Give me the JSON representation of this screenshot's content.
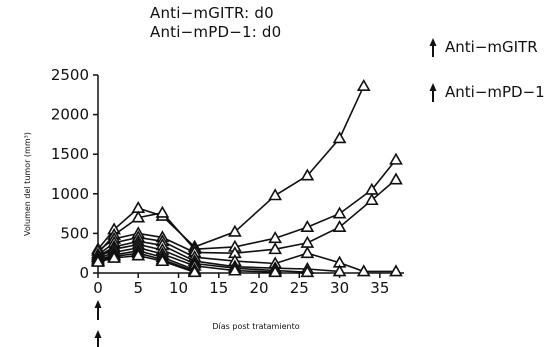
{
  "header": {
    "title_line1": "Anti−mGITR:  d0",
    "title_line2": "Anti−mPD−1:  d0"
  },
  "legend": {
    "items": [
      {
        "label": "Anti−mGITR",
        "icon": "arrow-up-icon"
      },
      {
        "label": "Anti−mPD−1",
        "icon": "arrow-up-icon"
      }
    ]
  },
  "chart_data": {
    "type": "line",
    "title": "",
    "xlabel": "Días post tratamiento",
    "ylabel": "Volumen del tumor (mm³)",
    "xlim": [
      0,
      38
    ],
    "ylim": [
      0,
      2500
    ],
    "x_ticks": [
      0,
      5,
      10,
      15,
      20,
      25,
      30,
      35
    ],
    "y_ticks": [
      0,
      500,
      1000,
      1500,
      2000,
      2500
    ],
    "marker": "open-triangle",
    "grid": false,
    "treatment_arrows_at_day": [
      0
    ],
    "series": [
      {
        "x": [
          0,
          2,
          5,
          8,
          12,
          17,
          22,
          26,
          30,
          33
        ],
        "y": [
          300,
          550,
          820,
          720,
          330,
          520,
          980,
          1230,
          1700,
          2360
        ]
      },
      {
        "x": [
          0,
          2,
          5,
          8,
          12,
          17,
          22,
          26,
          30,
          34,
          37
        ],
        "y": [
          250,
          480,
          700,
          760,
          300,
          330,
          440,
          580,
          750,
          1050,
          1430
        ]
      },
      {
        "x": [
          0,
          2,
          5,
          8,
          12,
          17,
          22,
          26,
          30,
          34,
          37
        ],
        "y": [
          280,
          430,
          500,
          450,
          260,
          250,
          300,
          380,
          580,
          920,
          1180
        ]
      },
      {
        "x": [
          0,
          2,
          5,
          8,
          12,
          17,
          22,
          26,
          30,
          33,
          37
        ],
        "y": [
          230,
          380,
          450,
          400,
          200,
          150,
          120,
          250,
          130,
          20,
          20
        ]
      },
      {
        "x": [
          0,
          2,
          5,
          8,
          12,
          17,
          22,
          26,
          30
        ],
        "y": [
          210,
          330,
          400,
          350,
          150,
          80,
          60,
          50,
          20
        ]
      },
      {
        "x": [
          0,
          2,
          5,
          8,
          12,
          17,
          22,
          26
        ],
        "y": [
          200,
          300,
          360,
          290,
          120,
          60,
          30,
          10
        ]
      },
      {
        "x": [
          0,
          2,
          5,
          8,
          12,
          17,
          22
        ],
        "y": [
          180,
          260,
          320,
          240,
          90,
          30,
          10
        ]
      },
      {
        "x": [
          0,
          2,
          5,
          8,
          12
        ],
        "y": [
          160,
          230,
          280,
          200,
          40
        ]
      },
      {
        "x": [
          0,
          2,
          5,
          8,
          12
        ],
        "y": [
          150,
          210,
          250,
          170,
          20
        ]
      },
      {
        "x": [
          0,
          2,
          5,
          8,
          12
        ],
        "y": [
          140,
          190,
          220,
          150,
          10
        ]
      }
    ]
  }
}
